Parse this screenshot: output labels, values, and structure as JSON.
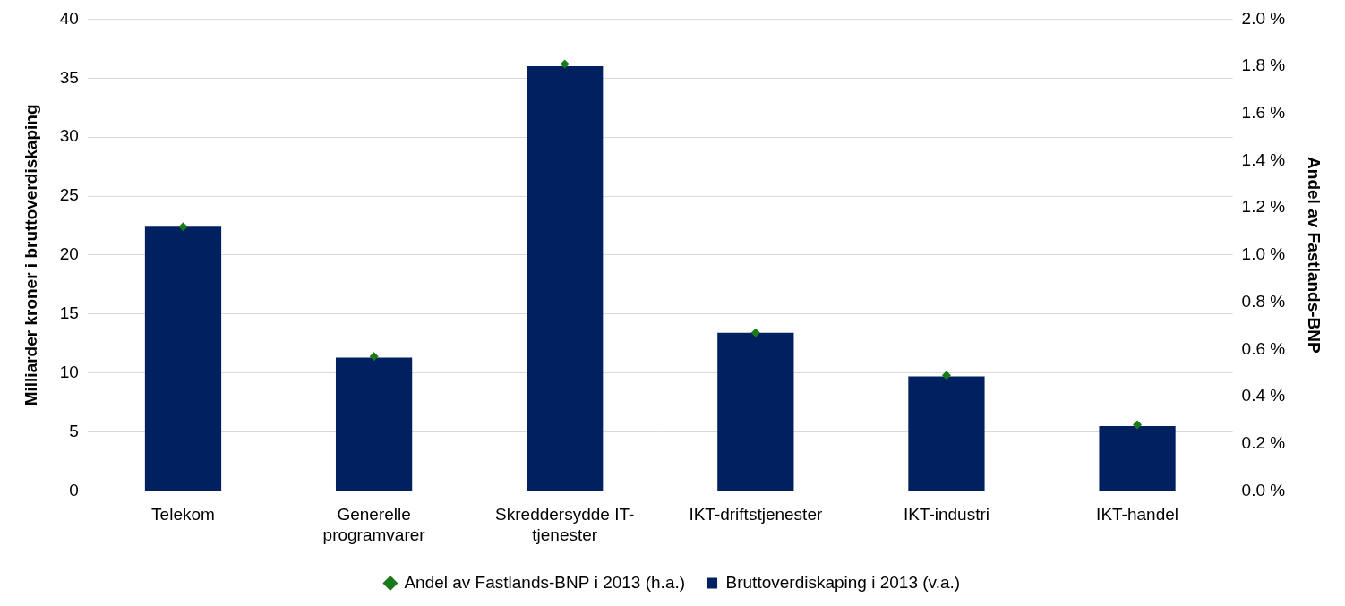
{
  "chart_data": {
    "type": "bar",
    "categories": [
      "Telekom",
      "Generelle programvarer",
      "Skreddersydde IT-tjenester",
      "IKT-driftstjenester",
      "IKT-industri",
      "IKT-handel"
    ],
    "series": [
      {
        "name": "Bruttoverdiskaping i 2013 (v.a.)",
        "type": "bar",
        "color": "#002060",
        "values": [
          22.4,
          11.3,
          36.0,
          13.4,
          9.7,
          5.5
        ]
      },
      {
        "name": "Andel av Fastlands-BNP i 2013 (h.a.)",
        "type": "scatter",
        "marker": "diamond",
        "color": "#1a7a1a",
        "axis": "y2",
        "values": [
          1.12,
          0.57,
          1.81,
          0.67,
          0.49,
          0.28
        ]
      }
    ],
    "y_label": "Milliarder kroner i bruttoverdiskaping",
    "y2_label": "Andel av Fastlands-BNP",
    "ylim": [
      0,
      40
    ],
    "yticks": [
      0,
      5,
      10,
      15,
      20,
      25,
      30,
      35,
      40
    ],
    "y2lim": [
      0,
      2
    ],
    "y2ticks": [
      {
        "value": 0,
        "label": "0.0 %"
      },
      {
        "value": 0.2,
        "label": "0.2 %"
      },
      {
        "value": 0.4,
        "label": "0.4 %"
      },
      {
        "value": 0.6,
        "label": "0.6 %"
      },
      {
        "value": 0.8,
        "label": "0.8 %"
      },
      {
        "value": 1.0,
        "label": "1.0 %"
      },
      {
        "value": 1.2,
        "label": "1.2 %"
      },
      {
        "value": 1.4,
        "label": "1.4 %"
      },
      {
        "value": 1.6,
        "label": "1.6 %"
      },
      {
        "value": 1.8,
        "label": "1.8 %"
      },
      {
        "value": 2.0,
        "label": "2.0 %"
      }
    ],
    "grid": true,
    "legend": "bottom"
  }
}
